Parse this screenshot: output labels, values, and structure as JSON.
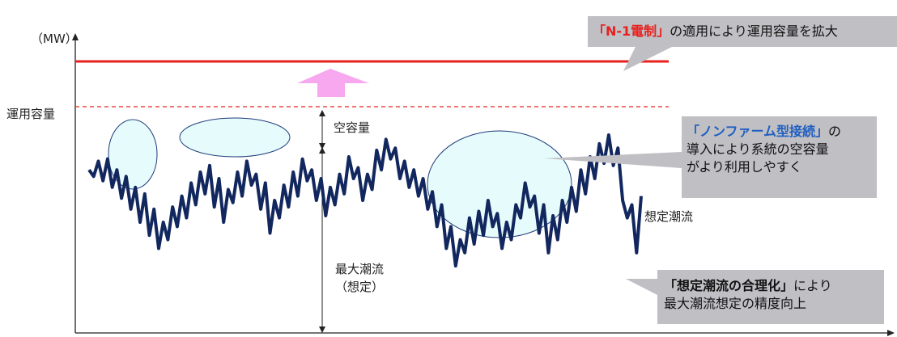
{
  "y_unit": "（MW）",
  "capacity_label": "運用容量",
  "free_capacity_label": "空容量",
  "max_flow_label_line1": "最大潮流",
  "max_flow_label_line2": "（想定）",
  "assumed_flow_label": "想定潮流",
  "callouts": {
    "n1": {
      "highlight": "「N-1電制」",
      "rest": "の適用により運用容量を拡大"
    },
    "nonfirm": {
      "highlight": "「ノンファーム型接続」",
      "rest_line1": "の",
      "line2": "導入により系統の空容量",
      "line3": "がより利用しやすく"
    },
    "rational": {
      "highlight": "「想定潮流の合理化」",
      "rest_line1": "により",
      "line2": "最大潮流想定の精度向上"
    }
  },
  "colors": {
    "raised_capacity": "#e8201e",
    "current_capacity": "#e8201e",
    "flow_line": "#12275e",
    "arrow_up": "#f7a8ee",
    "ellipse_fill": "#e6fbfb",
    "ellipse_stroke": "#1f3c7a",
    "callout_bg": "#bfbfc4"
  },
  "chart_data": {
    "type": "line",
    "series": [
      {
        "values": [
          74,
          71,
          78,
          69,
          79,
          66,
          74,
          61,
          71,
          56,
          66,
          50,
          63,
          44,
          56,
          38,
          50,
          42,
          57,
          48,
          62,
          52,
          68,
          58,
          73,
          63,
          76,
          57,
          70,
          50,
          65,
          59,
          73,
          62,
          78,
          67,
          72,
          56,
          68,
          45,
          60,
          52,
          67,
          57,
          73,
          62,
          79,
          69,
          74,
          60,
          70,
          53,
          66,
          58,
          72,
          63,
          80,
          70,
          75,
          60,
          72,
          65,
          83,
          74,
          88,
          79,
          84,
          70,
          78,
          66,
          74,
          62,
          70,
          56,
          64,
          48,
          58,
          38,
          48,
          30,
          42,
          36,
          52,
          40,
          55,
          44,
          60,
          48,
          54,
          38,
          50,
          42,
          58,
          52,
          68,
          57,
          62,
          45,
          58,
          36,
          53,
          42,
          60,
          50,
          66,
          55,
          74,
          63,
          80,
          70,
          86,
          77,
          90,
          76,
          84,
          60,
          52,
          58,
          36,
          62
        ]
      }
    ]
  }
}
